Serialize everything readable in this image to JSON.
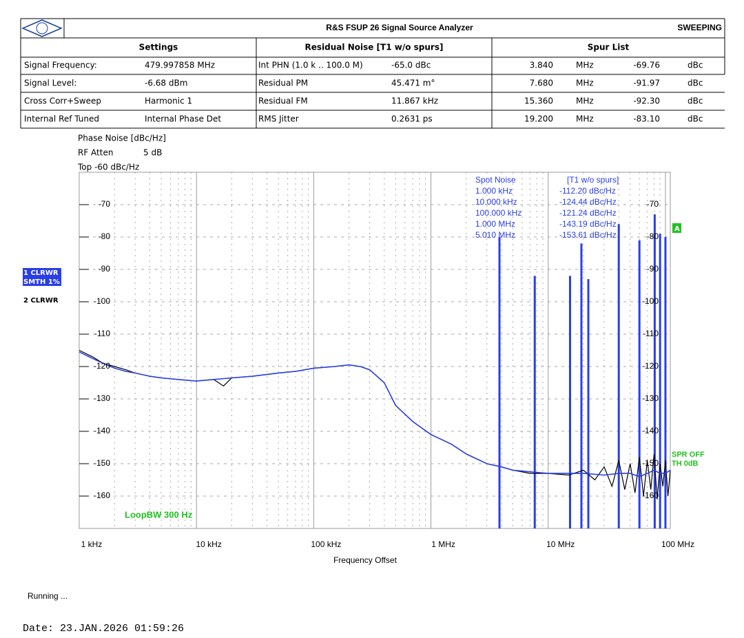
{
  "header": {
    "title": "R&S FSUP 26 Signal Source Analyzer",
    "status": "SWEEPING"
  },
  "table": {
    "headers": [
      "Settings",
      "Residual Noise [T1 w/o spurs]",
      "Spur List"
    ],
    "rows": [
      [
        "Signal Frequency:",
        "479.997858 MHz",
        "Int PHN (1.0 k .. 100.0 M)",
        "-65.0 dBc",
        "3.840",
        "MHz",
        "-69.76",
        "dBc"
      ],
      [
        "Signal Level:",
        "-6.68 dBm",
        "Residual PM",
        "45.471 m°",
        "7.680",
        "MHz",
        "-91.97",
        "dBc"
      ],
      [
        "Cross Corr+Sweep",
        "Harmonic 1",
        "Residual FM",
        "11.867 kHz",
        "15.360",
        "MHz",
        "-92.30",
        "dBc"
      ],
      [
        "Internal Ref Tuned",
        "Internal Phase Det",
        "RMS Jitter",
        "0.2631 ps",
        "19.200",
        "MHz",
        "-83.10",
        "dBc"
      ]
    ]
  },
  "chart_data": {
    "type": "line",
    "ylabel": "Phase Noise [dBc/Hz]",
    "rf_atten": [
      "RF Atten",
      "5 dB"
    ],
    "top": "Top -60 dBc/Hz",
    "trace_labels": [
      "1 CLRWR",
      "SMTH 1%",
      "2 CLRWR"
    ],
    "marker_tag": "A",
    "status_labels": [
      "SPR OFF",
      "TH 0dB"
    ],
    "annotation": "LoopBW 300 Hz",
    "xlabel": "Frequency Offset",
    "x_log": true,
    "xlim": [
      1000,
      110000000
    ],
    "ylim": [
      -170,
      -60
    ],
    "xticks": [
      {
        "value": 1000,
        "label": "1 kHz"
      },
      {
        "value": 10000,
        "label": "10 kHz"
      },
      {
        "value": 100000,
        "label": "100 kHz"
      },
      {
        "value": 1000000,
        "label": "1 MHz"
      },
      {
        "value": 10000000,
        "label": "10 MHz"
      },
      {
        "value": 100000000,
        "label": "100 MHz"
      }
    ],
    "yticks": [
      -70,
      -80,
      -90,
      -100,
      -110,
      -120,
      -130,
      -140,
      -150,
      -160
    ],
    "grid": true,
    "series": [
      {
        "color": "#000000",
        "x": [
          1000,
          1300,
          1600,
          2000,
          2500,
          3000,
          4000,
          5000,
          7000,
          10000,
          14000,
          17000,
          20000,
          30000,
          50000,
          70000,
          100000,
          150000,
          200000,
          250000,
          300000,
          400000,
          500000,
          700000,
          1000000,
          1500000,
          2000000,
          3000000,
          4000000,
          5000000,
          7000000,
          10000000,
          15000000,
          20000000,
          25000000,
          30000000,
          35000000,
          40000000,
          45000000,
          50000000,
          55000000,
          60000000,
          65000000,
          70000000,
          75000000,
          80000000,
          85000000,
          90000000,
          95000000,
          100000000,
          105000000,
          110000000
        ],
        "values": [
          -115,
          -117,
          -119,
          -120,
          -121,
          -122,
          -123,
          -123.5,
          -124,
          -124.5,
          -124,
          -126,
          -123.5,
          -123,
          -122,
          -121.5,
          -120.5,
          -120,
          -119.5,
          -120,
          -121,
          -125,
          -132,
          -137,
          -141,
          -144,
          -147,
          -150,
          -151,
          -152,
          -153,
          -153,
          -153.5,
          -152,
          -155,
          -151,
          -157,
          -149,
          -158,
          -150,
          -159,
          -148,
          -160,
          -149,
          -158,
          -147,
          -161,
          -150,
          -157,
          -149,
          -160,
          -152
        ]
      },
      {
        "color": "#2a3ee6",
        "x": [
          1000,
          1300,
          1600,
          2000,
          2500,
          3000,
          4000,
          5000,
          7000,
          10000,
          14000,
          20000,
          30000,
          50000,
          70000,
          100000,
          150000,
          200000,
          250000,
          300000,
          400000,
          500000,
          700000,
          1000000,
          1500000,
          2000000,
          3000000,
          4000000,
          5000000,
          7000000,
          10000000,
          15000000,
          20000000,
          30000000,
          40000000,
          50000000,
          60000000,
          70000000,
          80000000,
          90000000,
          100000000,
          110000000
        ],
        "values": [
          -115.5,
          -117.5,
          -119,
          -120.5,
          -121.5,
          -122,
          -123,
          -123.5,
          -124,
          -124.5,
          -124,
          -123.5,
          -123,
          -122,
          -121.5,
          -120.5,
          -120,
          -119.5,
          -120,
          -121,
          -125,
          -132,
          -137,
          -141,
          -144,
          -147,
          -150,
          -151,
          -152,
          -152.5,
          -153,
          -153,
          -153,
          -153.5,
          -153,
          -153,
          -154,
          -153,
          -152,
          -153,
          -153,
          -152
        ]
      }
    ],
    "spurs": {
      "color": "#2a3ee6",
      "x": [
        3840000,
        7680000,
        15360000,
        19200000,
        22000000,
        40000000,
        60000000,
        81000000,
        90000000,
        100000000
      ],
      "values": [
        -80,
        -92,
        -92,
        -82,
        -93,
        -76,
        -81,
        -73,
        -79,
        -80
      ]
    },
    "spot_noise": {
      "title": "Spot Noise",
      "mode": "[T1 w/o spurs]",
      "rows": [
        [
          "1.000 kHz",
          "-112.20 dBc/Hz"
        ],
        [
          "10.000 kHz",
          "-124.44 dBc/Hz"
        ],
        [
          "100.000 kHz",
          "-121.24 dBc/Hz"
        ],
        [
          "1.000 MHz",
          "-143.19 dBc/Hz"
        ],
        [
          "5.010 MHz",
          "-153.61 dBc/Hz"
        ]
      ]
    }
  },
  "footer": {
    "status": "Running ...",
    "date": "Date: 23.JAN.2026  01:59:26"
  }
}
